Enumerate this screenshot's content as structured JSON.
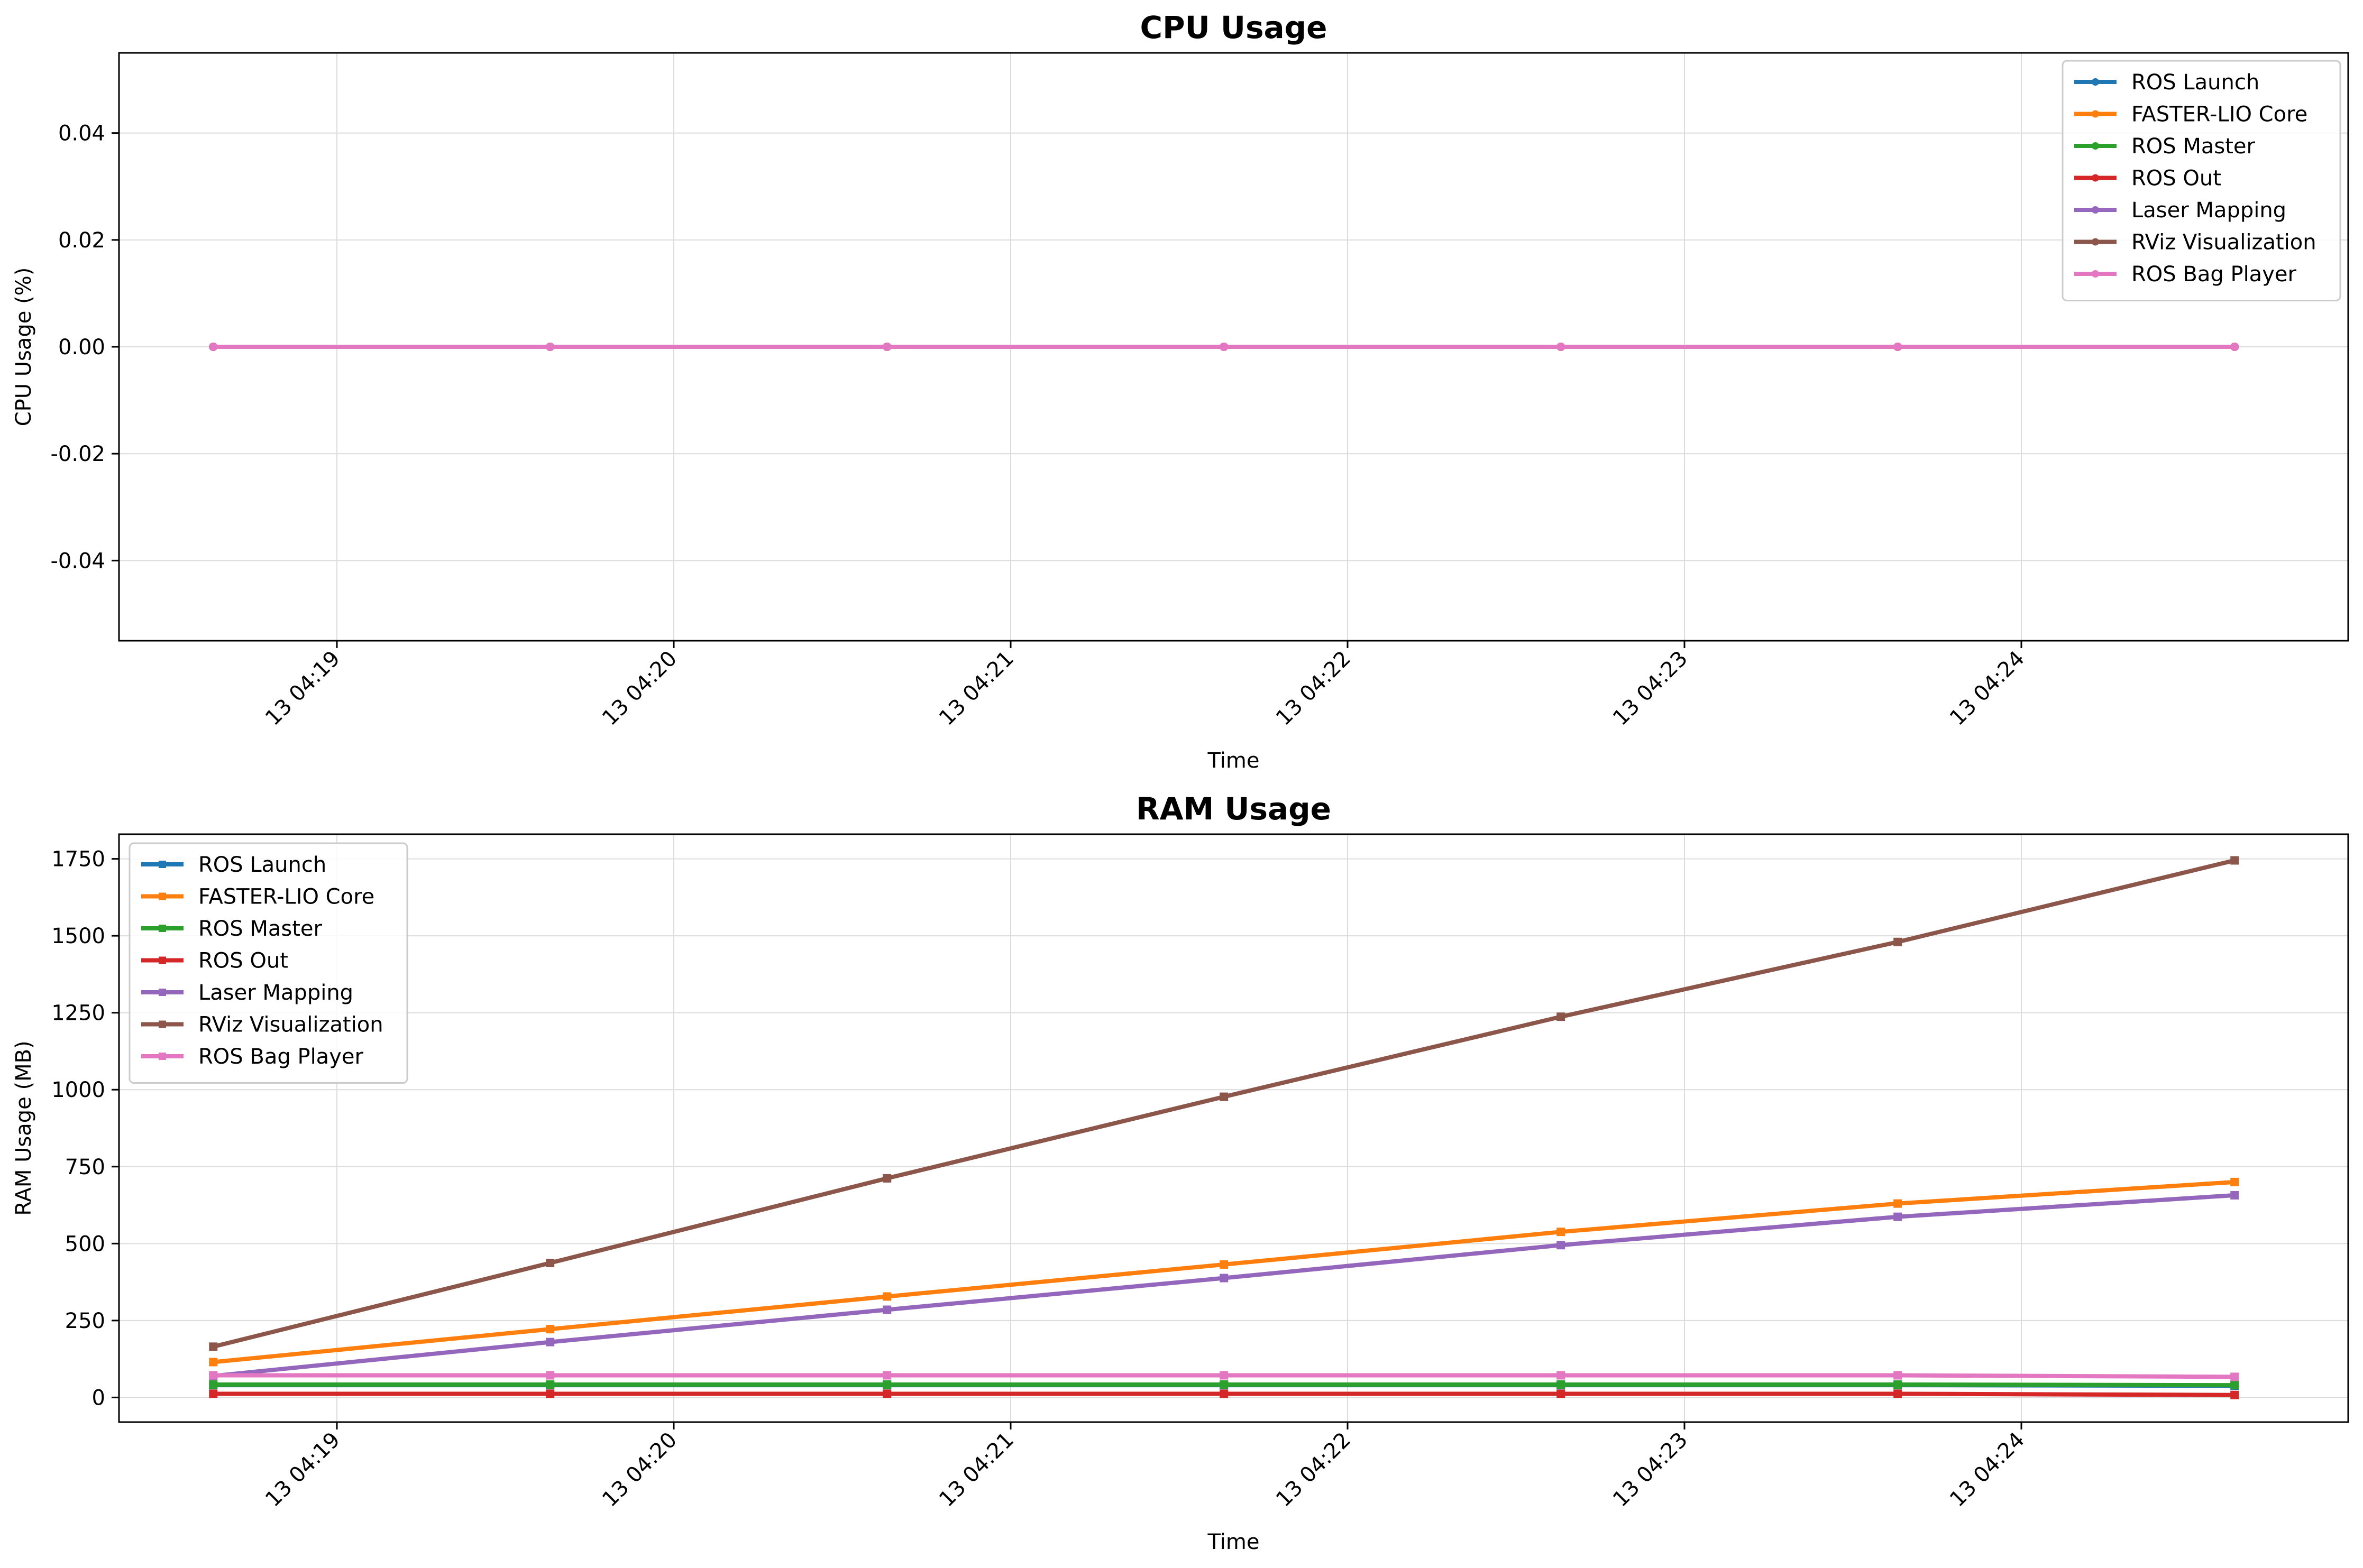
{
  "chart_data": [
    {
      "type": "line",
      "title": "CPU Usage",
      "xlabel": "Time",
      "ylabel": "CPU Usage (%)",
      "x": [
        "2024-?-13 04:18:38",
        "04:19:38",
        "04:20:38",
        "04:21:38",
        "04:22:38",
        "04:23:38",
        "04:24:38"
      ],
      "x_minutes": [
        18.633,
        19.633,
        20.633,
        21.633,
        22.633,
        23.633,
        24.633
      ],
      "xticks": [
        "13 04:19",
        "13 04:20",
        "13 04:21",
        "13 04:22",
        "13 04:23",
        "13 04:24"
      ],
      "yticks": [
        "-0.04",
        "-0.02",
        "0.00",
        "0.02",
        "0.04"
      ],
      "ylim": [
        -0.055,
        0.055
      ],
      "grid": true,
      "legend_position": "top-right",
      "marker": "circle",
      "series": [
        {
          "name": "ROS Launch",
          "color": "#1f77b4",
          "values": [
            0,
            0,
            0,
            0,
            0,
            0,
            0
          ]
        },
        {
          "name": "FASTER-LIO Core",
          "color": "#ff7f0e",
          "values": [
            0,
            0,
            0,
            0,
            0,
            0,
            0
          ]
        },
        {
          "name": "ROS Master",
          "color": "#2ca02c",
          "values": [
            0,
            0,
            0,
            0,
            0,
            0,
            0
          ]
        },
        {
          "name": "ROS Out",
          "color": "#d62728",
          "values": [
            0,
            0,
            0,
            0,
            0,
            0,
            0
          ]
        },
        {
          "name": "Laser Mapping",
          "color": "#9467bd",
          "values": [
            0,
            0,
            0,
            0,
            0,
            0,
            0
          ]
        },
        {
          "name": "RViz Visualization",
          "color": "#8c564b",
          "values": [
            0,
            0,
            0,
            0,
            0,
            0,
            0
          ]
        },
        {
          "name": "ROS Bag Player",
          "color": "#e377c2",
          "values": [
            0,
            0,
            0,
            0,
            0,
            0,
            0
          ]
        }
      ]
    },
    {
      "type": "line",
      "title": "RAM Usage",
      "xlabel": "Time",
      "ylabel": "RAM Usage (MB)",
      "x_minutes": [
        18.633,
        19.633,
        20.633,
        21.633,
        22.633,
        23.633,
        24.633
      ],
      "xticks": [
        "13 04:19",
        "13 04:20",
        "13 04:21",
        "13 04:22",
        "13 04:23",
        "13 04:24"
      ],
      "yticks": [
        "0",
        "250",
        "500",
        "750",
        "1000",
        "1250",
        "1500",
        "1750"
      ],
      "ylim": [
        -80,
        1830
      ],
      "grid": true,
      "legend_position": "top-left",
      "marker": "square",
      "series": [
        {
          "name": "ROS Launch",
          "color": "#1f77b4",
          "values": [
            40,
            40,
            40,
            40,
            40,
            40,
            38
          ]
        },
        {
          "name": "FASTER-LIO Core",
          "color": "#ff7f0e",
          "values": [
            115,
            222,
            328,
            432,
            538,
            630,
            700
          ]
        },
        {
          "name": "ROS Master",
          "color": "#2ca02c",
          "values": [
            42,
            42,
            42,
            42,
            42,
            42,
            40
          ]
        },
        {
          "name": "ROS Out",
          "color": "#d62728",
          "values": [
            12,
            12,
            12,
            12,
            12,
            12,
            8
          ]
        },
        {
          "name": "Laser Mapping",
          "color": "#9467bd",
          "values": [
            70,
            180,
            285,
            388,
            495,
            587,
            657
          ]
        },
        {
          "name": "RViz Visualization",
          "color": "#8c564b",
          "values": [
            165,
            437,
            712,
            977,
            1237,
            1480,
            1745
          ]
        },
        {
          "name": "ROS Bag Player",
          "color": "#e377c2",
          "values": [
            72,
            72,
            72,
            72,
            72,
            72,
            67
          ]
        }
      ]
    }
  ]
}
